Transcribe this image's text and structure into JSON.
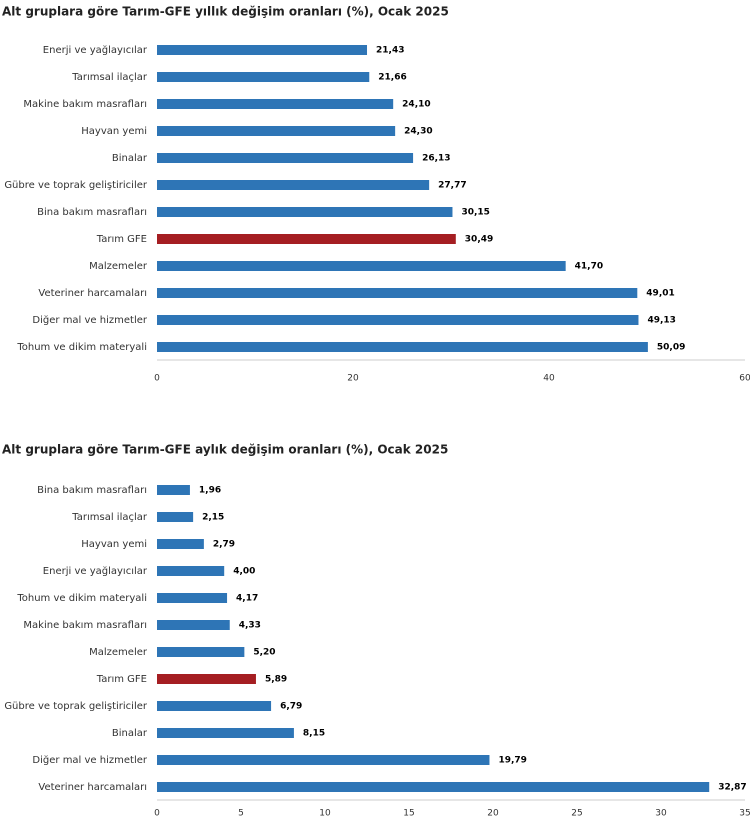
{
  "chart_data": [
    {
      "type": "bar",
      "orientation": "horizontal",
      "title": "Alt gruplara göre Tarım-GFE yıllık değişim oranları (%), Ocak 2025",
      "categories": [
        "Enerji  ve yağlayıcılar",
        "Tarımsal ilaçlar",
        "Makine bakım masrafları",
        "Hayvan yemi",
        "Binalar",
        "Gübre ve toprak geliştiriciler",
        "Bina bakım masrafları",
        "Tarım GFE",
        "Malzemeler",
        "Veteriner harcamaları",
        "Diğer mal ve hizmetler",
        "Tohum ve dikim materyali"
      ],
      "values": [
        21.43,
        21.66,
        24.1,
        24.3,
        26.13,
        27.77,
        30.15,
        30.49,
        41.7,
        49.01,
        49.13,
        50.09
      ],
      "value_labels": [
        "21,43",
        "21,66",
        "24,10",
        "24,30",
        "26,13",
        "27,77",
        "30,15",
        "30,49",
        "41,70",
        "49,01",
        "49,13",
        "50,09"
      ],
      "colors": [
        "#2e75b6",
        "#2e75b6",
        "#2e75b6",
        "#2e75b6",
        "#2e75b6",
        "#2e75b6",
        "#2e75b6",
        "#a51e22",
        "#2e75b6",
        "#2e75b6",
        "#2e75b6",
        "#2e75b6"
      ],
      "xlim": [
        0,
        60
      ],
      "xticks": [
        0,
        20,
        40,
        60
      ]
    },
    {
      "type": "bar",
      "orientation": "horizontal",
      "title": "Alt gruplara göre Tarım-GFE aylık değişim oranları (%), Ocak 2025",
      "categories": [
        "Bina bakım masrafları",
        "Tarımsal ilaçlar",
        "Hayvan yemi",
        "Enerji  ve yağlayıcılar",
        "Tohum ve dikim materyali",
        "Makine bakım masrafları",
        "Malzemeler",
        "Tarım GFE",
        "Gübre ve toprak geliştiriciler",
        "Binalar",
        "Diğer mal ve hizmetler",
        "Veteriner harcamaları"
      ],
      "values": [
        1.96,
        2.15,
        2.79,
        4.0,
        4.17,
        4.33,
        5.2,
        5.89,
        6.79,
        8.15,
        19.79,
        32.87
      ],
      "value_labels": [
        "1,96",
        "2,15",
        "2,79",
        "4,00",
        "4,17",
        "4,33",
        "5,20",
        "5,89",
        "6,79",
        "8,15",
        "19,79",
        "32,87"
      ],
      "colors": [
        "#2e75b6",
        "#2e75b6",
        "#2e75b6",
        "#2e75b6",
        "#2e75b6",
        "#2e75b6",
        "#2e75b6",
        "#a51e22",
        "#2e75b6",
        "#2e75b6",
        "#2e75b6",
        "#2e75b6"
      ],
      "xlim": [
        0,
        35
      ],
      "xticks": [
        0,
        5,
        10,
        15,
        20,
        25,
        30,
        35
      ]
    }
  ]
}
